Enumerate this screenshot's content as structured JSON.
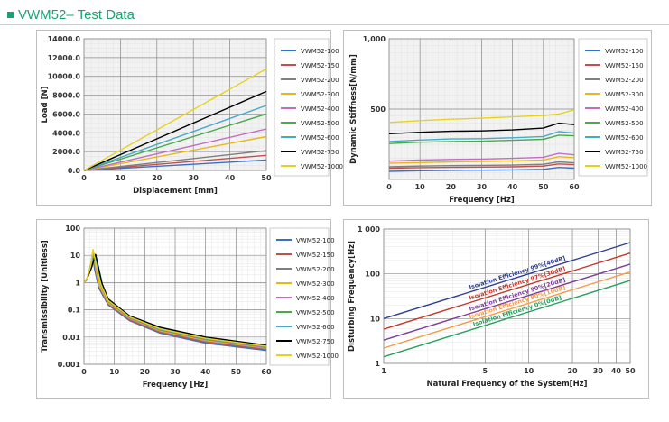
{
  "header": {
    "title": "VWM52– Test Data"
  },
  "colors": {
    "accent": "#1aa16f"
  },
  "series_colors": [
    "#3a6fc6",
    "#c0504d",
    "#7f7f7f",
    "#e8b818",
    "#c06fc0",
    "#4aaa4a",
    "#46a9c9",
    "#000000",
    "#e6d21e"
  ],
  "chart_data": [
    {
      "type": "line",
      "xlabel": "Displacement [mm]",
      "ylabel": "Load [N]",
      "xlim": [
        0,
        50
      ],
      "ylim": [
        0,
        14000
      ],
      "xticks": [
        "0",
        "10",
        "20",
        "30",
        "40",
        "50"
      ],
      "yticks": [
        "0.0",
        "2000.0",
        "4000.0",
        "6000.0",
        "8000.0",
        "10000.0",
        "12000.0",
        "14000.0"
      ],
      "grid": true,
      "legend": "right",
      "x": [
        0,
        50
      ],
      "series": [
        {
          "name": "VWM52-100",
          "values": [
            0,
            1100
          ]
        },
        {
          "name": "VWM52-150",
          "values": [
            0,
            1600
          ]
        },
        {
          "name": "VWM52-200",
          "values": [
            0,
            2100
          ]
        },
        {
          "name": "VWM52-300",
          "values": [
            0,
            3600
          ]
        },
        {
          "name": "VWM52-400",
          "values": [
            0,
            4400
          ]
        },
        {
          "name": "VWM52-500",
          "values": [
            0,
            6000
          ]
        },
        {
          "name": "VWM52-600",
          "values": [
            0,
            6900
          ]
        },
        {
          "name": "VWM52-750",
          "values": [
            0,
            8400
          ]
        },
        {
          "name": "VWM52-1000",
          "values": [
            0,
            10800
          ]
        }
      ]
    },
    {
      "type": "line",
      "xlabel": "Frequency [Hz]",
      "ylabel": "Dynamic Stiffness[N/mm]",
      "xlim": [
        0,
        60
      ],
      "ylim": [
        0,
        1000
      ],
      "xticks": [
        "0",
        "10",
        "20",
        "30",
        "40",
        "50",
        "60"
      ],
      "yticks": [
        "500",
        "1,000"
      ],
      "grid": true,
      "legend": "right",
      "x": [
        0,
        10,
        20,
        30,
        40,
        50,
        55,
        60
      ],
      "series": [
        {
          "name": "VWM52-100",
          "values": [
            58,
            62,
            65,
            66,
            68,
            72,
            85,
            80
          ]
        },
        {
          "name": "VWM52-150",
          "values": [
            80,
            84,
            86,
            88,
            90,
            95,
            110,
            105
          ]
        },
        {
          "name": "VWM52-200",
          "values": [
            90,
            95,
            98,
            100,
            102,
            108,
            125,
            118
          ]
        },
        {
          "name": "VWM52-300",
          "values": [
            115,
            120,
            125,
            128,
            132,
            138,
            162,
            155
          ]
        },
        {
          "name": "VWM52-400",
          "values": [
            130,
            138,
            142,
            145,
            150,
            158,
            185,
            175
          ]
        },
        {
          "name": "VWM52-500",
          "values": [
            255,
            265,
            270,
            272,
            278,
            285,
            315,
            310
          ]
        },
        {
          "name": "VWM52-600",
          "values": [
            270,
            280,
            288,
            290,
            296,
            305,
            340,
            330
          ]
        },
        {
          "name": "VWM52-750",
          "values": [
            325,
            335,
            342,
            345,
            352,
            365,
            400,
            390
          ]
        },
        {
          "name": "VWM52-1000",
          "values": [
            405,
            418,
            428,
            435,
            445,
            455,
            465,
            495
          ]
        }
      ]
    },
    {
      "type": "line",
      "xlabel": "Frequency [Hz]",
      "ylabel": "Transmissibility  [Unitless]",
      "xscale": "linear",
      "yscale": "log",
      "xlim": [
        0,
        60
      ],
      "ylim": [
        0.001,
        100
      ],
      "xticks": [
        "0",
        "10",
        "20",
        "30",
        "40",
        "50",
        "60"
      ],
      "yticks": [
        "0.001",
        "0.01",
        "0.1",
        "1",
        "10",
        "100"
      ],
      "grid": true,
      "legend": "right",
      "series": [
        {
          "name": "VWM52-100",
          "x": [
            0,
            1,
            2,
            2.8,
            3.5,
            5,
            8,
            15,
            25,
            40,
            60
          ],
          "values": [
            1,
            1.3,
            3,
            12,
            3,
            0.6,
            0.15,
            0.04,
            0.014,
            0.006,
            0.0032
          ]
        },
        {
          "name": "VWM52-150",
          "x": [
            0,
            1,
            2,
            3,
            3.8,
            5,
            8,
            15,
            25,
            40,
            60
          ],
          "values": [
            1,
            1.3,
            3,
            13,
            3,
            0.7,
            0.16,
            0.042,
            0.015,
            0.0065,
            0.0035
          ]
        },
        {
          "name": "VWM52-200",
          "x": [
            0,
            1,
            2,
            3,
            3.8,
            5,
            8,
            15,
            25,
            40,
            60
          ],
          "values": [
            1,
            1.3,
            3,
            12,
            3,
            0.75,
            0.17,
            0.045,
            0.016,
            0.007,
            0.0037
          ]
        },
        {
          "name": "VWM52-300",
          "x": [
            0,
            1,
            2,
            3,
            3.8,
            5,
            8,
            15,
            25,
            40,
            60
          ],
          "values": [
            1,
            1.4,
            3.5,
            15,
            3.5,
            0.8,
            0.18,
            0.048,
            0.017,
            0.0075,
            0.0039
          ]
        },
        {
          "name": "VWM52-400",
          "x": [
            0,
            1,
            2,
            3.2,
            4,
            5.5,
            8,
            15,
            25,
            40,
            60
          ],
          "values": [
            1,
            1.4,
            3.5,
            13,
            3.5,
            0.8,
            0.2,
            0.05,
            0.018,
            0.008,
            0.0041
          ]
        },
        {
          "name": "VWM52-500",
          "x": [
            0,
            1,
            2,
            3.3,
            4.2,
            5.5,
            8,
            15,
            25,
            40,
            60
          ],
          "values": [
            1,
            1.4,
            3.5,
            11,
            3.5,
            0.85,
            0.21,
            0.053,
            0.019,
            0.0085,
            0.0044
          ]
        },
        {
          "name": "VWM52-600",
          "x": [
            0,
            1,
            2.2,
            3.5,
            4.4,
            6,
            8,
            15,
            25,
            40,
            60
          ],
          "values": [
            1,
            1.4,
            3.5,
            11,
            3.5,
            0.7,
            0.23,
            0.056,
            0.021,
            0.009,
            0.0047
          ]
        },
        {
          "name": "VWM52-750",
          "x": [
            0,
            1,
            2.5,
            3.8,
            4.8,
            6,
            8,
            15,
            25,
            40,
            60
          ],
          "values": [
            1,
            1.4,
            3.5,
            11,
            3.5,
            0.9,
            0.25,
            0.06,
            0.023,
            0.01,
            0.005
          ]
        },
        {
          "name": "VWM52-1000",
          "x": [
            0,
            1,
            2.2,
            3,
            4,
            5.5,
            8,
            15,
            25,
            40,
            60
          ],
          "values": [
            1,
            1.4,
            4,
            17,
            4,
            0.9,
            0.22,
            0.055,
            0.02,
            0.009,
            0.0046
          ]
        }
      ]
    },
    {
      "type": "line",
      "xlabel": "Natural Frequency of the System[Hz]",
      "ylabel": "Disturbing Frequency[Hz]",
      "xscale": "log",
      "yscale": "log",
      "xlim": [
        1,
        50
      ],
      "ylim": [
        1,
        1000
      ],
      "xticks": [
        "1",
        "5",
        "10",
        "20",
        "30",
        "40",
        "50"
      ],
      "yticks": [
        "1",
        "10",
        "100",
        "1 000"
      ],
      "grid": true,
      "x": [
        1,
        50
      ],
      "series": [
        {
          "label": "Isolation Efficiency 99%[40dB]",
          "color": "#2e3f8f",
          "values": [
            10,
            500
          ]
        },
        {
          "label": "Isolation Efficiency 97%[30dB]",
          "color": "#c0392b",
          "values": [
            5.8,
            290
          ]
        },
        {
          "label": "Isolation Efficiency 90%[20dB]",
          "color": "#7b3f98",
          "values": [
            3.3,
            165
          ]
        },
        {
          "label": "Isolation Efficiency 80%[10dB]",
          "color": "#f39c4a",
          "values": [
            2.2,
            110
          ]
        },
        {
          "label": "Isolation Efficiency 0%[0dB]",
          "color": "#27a060",
          "values": [
            1.4,
            71
          ]
        }
      ]
    }
  ]
}
